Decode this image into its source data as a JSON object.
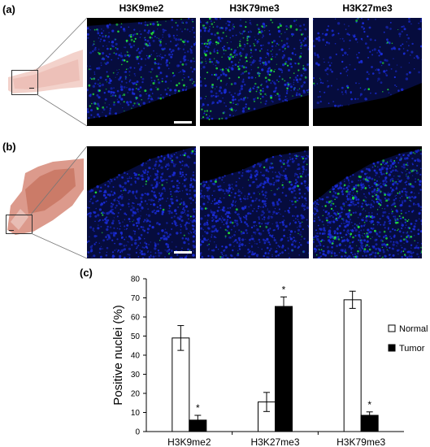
{
  "figure": {
    "panel_a_label": "(a)",
    "panel_b_label": "(b)",
    "panel_c_label": "(c)",
    "column_titles": [
      "H3K9me2",
      "H3K79me3",
      "H3K27me3"
    ]
  },
  "colors": {
    "nucleus": "#1a2cd8",
    "marker": "#22e33a",
    "tissue": "#e9b7b0",
    "tissue_dark": "#c26752",
    "normal_fill": "#ffffff",
    "tumor_fill": "#000000"
  },
  "chart_data": {
    "type": "bar",
    "categories": [
      "H3K9me2",
      "H3K27me3",
      "H3K79me3"
    ],
    "series": [
      {
        "name": "Normal",
        "values": [
          49,
          15.5,
          69
        ],
        "errors": [
          6.5,
          5,
          4.5
        ]
      },
      {
        "name": "Tumor",
        "values": [
          6,
          65.5,
          8.5
        ],
        "errors": [
          2.5,
          5,
          1.8
        ]
      }
    ],
    "significance": [
      "*",
      "*",
      "*"
    ],
    "xlabel": "",
    "ylabel": "Positive nuclei (%)",
    "ylim": [
      0,
      80
    ],
    "yticks": [
      0,
      10,
      20,
      30,
      40,
      50,
      60,
      70,
      80
    ],
    "legend_position": "right",
    "grid": false
  }
}
